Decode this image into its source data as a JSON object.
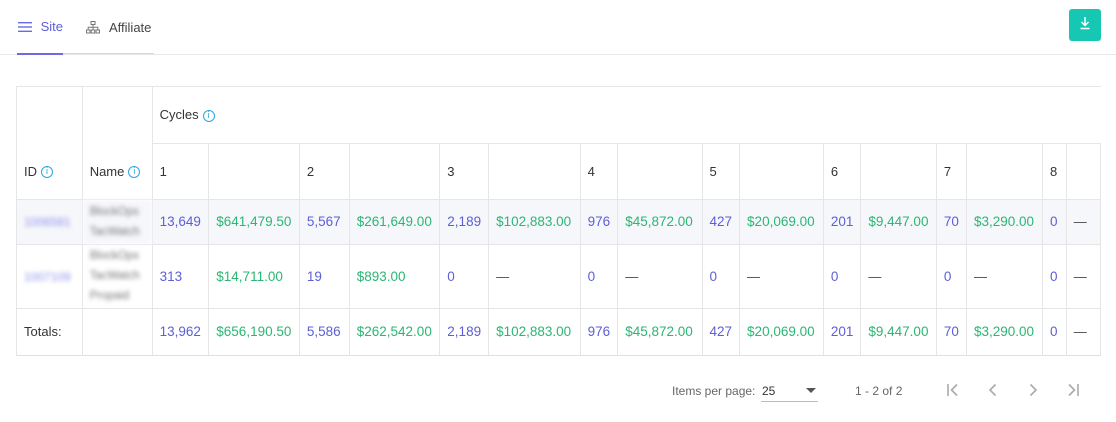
{
  "tabs": [
    {
      "label": "Site",
      "icon": "menu-icon"
    },
    {
      "label": "Affiliate",
      "icon": "sitemap-icon"
    }
  ],
  "toolbar": {
    "download_icon": "download-icon"
  },
  "table": {
    "cycles_label": "Cycles",
    "id_header": "ID",
    "name_header": "Name",
    "info_glyph": "i",
    "cycle_numbers": [
      "1",
      "2",
      "3",
      "4",
      "5",
      "6",
      "7",
      "8"
    ],
    "rows": [
      {
        "id": "1006581",
        "name_lines": [
          "BlockOps",
          "TacWatch"
        ],
        "cells": [
          "13,649",
          "$641,479.50",
          "5,567",
          "$261,649.00",
          "2,189",
          "$102,883.00",
          "976",
          "$45,872.00",
          "427",
          "$20,069.00",
          "201",
          "$9,447.00",
          "70",
          "$3,290.00",
          "0",
          "—"
        ]
      },
      {
        "id": "1007109",
        "name_lines": [
          "BlockOps",
          "TacWatch",
          "Propaid"
        ],
        "cells": [
          "313",
          "$14,711.00",
          "19",
          "$893.00",
          "0",
          "—",
          "0",
          "—",
          "0",
          "—",
          "0",
          "—",
          "0",
          "—",
          "0",
          "—"
        ]
      }
    ],
    "totals": {
      "label": "Totals:",
      "cells": [
        "13,962",
        "$656,190.50",
        "5,586",
        "$262,542.00",
        "2,189",
        "$102,883.00",
        "976",
        "$45,872.00",
        "427",
        "$20,069.00",
        "201",
        "$9,447.00",
        "70",
        "$3,290.00",
        "0",
        "—"
      ]
    }
  },
  "pagination": {
    "items_per_page_label": "Items per page:",
    "items_per_page_value": "25",
    "range": "1 - 2 of 2"
  },
  "colors": {
    "accent": "#5c5fd6",
    "money": "#2bb673",
    "download_button": "#16c7b4",
    "info_icon": "#2aa8e0"
  }
}
